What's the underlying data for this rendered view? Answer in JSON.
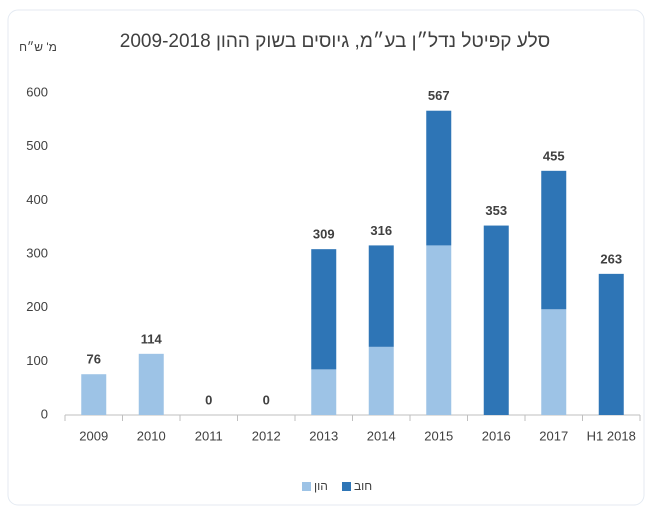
{
  "chart_data": {
    "type": "stacked_bar",
    "title": "סלע קפיטל נדל״ן בע״מ, גיוסים בשוק ההון 2009-2018",
    "y_axis_label": "מ' ש״ח",
    "categories": [
      "2009",
      "2010",
      "2011",
      "2012",
      "2013",
      "2014",
      "2015",
      "2016",
      "2017",
      "H1 2018"
    ],
    "series": [
      {
        "name": "הון",
        "color": "#9dc3e6",
        "values": [
          76,
          114,
          0,
          0,
          85,
          127,
          316,
          0,
          197,
          0
        ]
      },
      {
        "name": "חוב",
        "color": "#2e75b6",
        "values": [
          0,
          0,
          0,
          0,
          224,
          189,
          251,
          353,
          258,
          263
        ]
      }
    ],
    "totals": [
      76,
      114,
      0,
      0,
      309,
      316,
      567,
      353,
      455,
      263
    ],
    "ylim": [
      0,
      600
    ],
    "yticks": [
      0,
      100,
      200,
      300,
      400,
      500,
      600
    ],
    "grid": false
  }
}
